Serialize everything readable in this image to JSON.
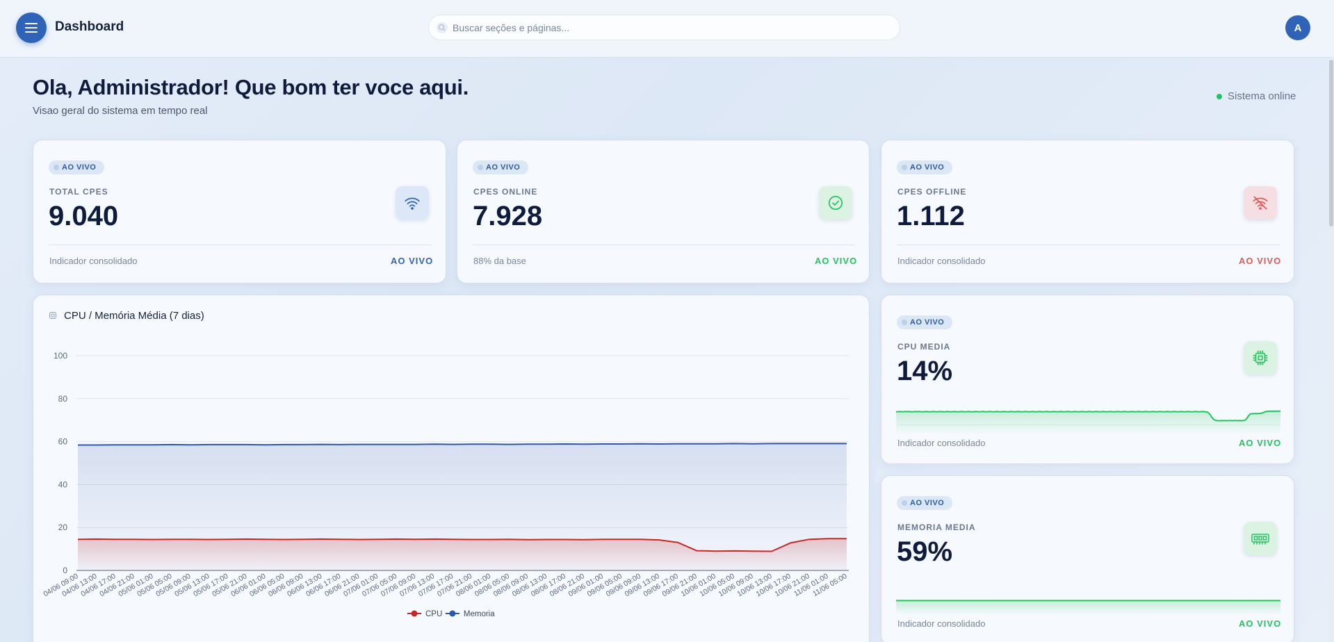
{
  "header": {
    "title": "Dashboard",
    "search_placeholder": "Buscar seções e páginas...",
    "avatar_initial": "A"
  },
  "welcome": {
    "greeting": "Ola, Administrador! Que bom ter voce aqui.",
    "subtitle": "Visao geral do sistema em tempo real",
    "status": "Sistema online"
  },
  "colors": {
    "primary": "#2f63b8",
    "success": "#22c55e",
    "danger": "#e05a5a",
    "cpu_line": "#c62828",
    "memory_line": "#2f56a8"
  },
  "kpis": [
    {
      "badge": "AO VIVO",
      "label": "TOTAL CPES",
      "value": "9.040",
      "footnote": "Indicador consolidado",
      "live": "AO VIVO",
      "icon": "wifi-icon"
    },
    {
      "badge": "AO VIVO",
      "label": "CPES ONLINE",
      "value": "7.928",
      "footnote": "88% da base",
      "live": "AO VIVO",
      "icon": "check-circle-icon"
    },
    {
      "badge": "AO VIVO",
      "label": "CPES OFFLINE",
      "value": "1.112",
      "footnote": "Indicador consolidado",
      "live": "AO VIVO",
      "icon": "wifi-off-icon"
    }
  ],
  "metrics": [
    {
      "badge": "AO VIVO",
      "label": "CPU MEDIA",
      "value": "14%",
      "footnote": "Indicador consolidado",
      "live": "AO VIVO",
      "icon": "cpu-chip-icon",
      "spark": [
        14.2,
        14.1,
        14.3,
        14.2,
        14.1,
        14.3,
        14.2,
        14.3,
        14.2,
        14.1,
        14.2,
        14.3,
        14.2,
        14.3,
        14.2,
        14.1,
        14.2,
        14.3,
        14.2,
        14.1,
        14.2,
        14.3,
        14.2,
        14.1,
        14.2,
        14.3,
        14.2,
        14.1,
        14.2,
        14.3,
        14.2,
        14.1,
        14.2,
        14.3,
        14.2,
        14.1,
        14.2,
        14.3,
        14.2,
        14.1,
        14.2,
        14.3,
        14.2,
        14.1,
        14.2,
        14.3,
        14.2,
        14.1,
        14.2,
        14.3,
        14.2,
        14.1,
        14.2,
        14.3,
        14.2,
        14.1,
        14.2,
        14.3,
        14.2,
        14.1,
        14.2,
        14.3,
        14.2,
        14.1,
        14.2,
        14.3,
        14.2,
        14.1,
        14.2,
        14.3,
        14.2,
        14.1,
        14.2,
        14.3,
        14.2,
        14.1,
        14.2,
        14.3,
        14.2,
        14.1,
        14.2,
        14.3,
        14.2,
        14.1,
        14.2,
        14.3,
        14.2,
        14.1,
        14.2,
        14.3,
        14.2,
        14.1,
        14.2,
        14.3,
        14.2,
        14.1,
        14.2,
        14.3,
        14.2,
        14.1,
        14.2,
        14.3,
        14.2,
        14.1,
        14.2,
        14.3,
        14.2,
        14.1,
        14.2,
        14.3,
        14.2,
        14.1,
        14.2,
        14.3,
        14.2,
        14.1,
        14.2,
        14.3,
        14.2,
        14.1,
        14.2,
        14.3,
        14.2,
        14.1,
        14.2,
        14.3,
        14.2,
        14.1,
        14.2,
        14.3,
        14.2,
        14.1,
        14.2,
        14.3,
        14.2,
        14.1,
        14.2,
        14.3,
        14.2,
        14.1,
        14.2,
        14.3,
        14.2,
        14.1,
        14.2,
        14.3,
        14.2,
        14.1,
        14.2,
        14.3,
        14.2,
        14.1,
        14.2,
        14.3,
        14.2,
        14.1,
        14.2,
        14.3,
        14.2,
        14.1,
        14.2,
        14.3,
        14.2,
        14.1,
        14.2,
        14.3,
        14.2,
        14.1,
        14.2,
        14.3,
        14.2,
        14.1,
        14.2,
        14.3,
        14.2,
        14.1,
        13.8,
        13.0,
        11.5,
        10.3,
        9.6,
        9.4,
        9.3,
        9.3,
        9.4,
        9.3,
        9.4,
        9.3,
        9.4,
        9.4,
        9.3,
        9.4,
        9.4,
        9.3,
        9.4,
        9.3,
        9.4,
        9.6,
        10.5,
        12.0,
        13.0,
        13.1,
        13.1,
        13.2,
        13.1,
        13.2,
        13.3,
        13.6,
        14.0,
        14.3,
        14.4,
        14.4,
        14.5,
        14.4,
        14.5,
        14.5,
        14.4,
        14.5
      ],
      "spark_min": 5,
      "spark_max": 20
    },
    {
      "badge": "AO VIVO",
      "label": "MEMORIA MEDIA",
      "value": "59%",
      "footnote": "Indicador consolidado",
      "live": "AO VIVO",
      "icon": "memory-icon",
      "spark": [
        57.2,
        57.2,
        57.2,
        57.2,
        57.2,
        57.2,
        57.2,
        57.2,
        57.2,
        57.2,
        57.2,
        57.2,
        57.2,
        57.2,
        57.2,
        57.2,
        57.2,
        57.2,
        57.2,
        57.2,
        57.2,
        57.2,
        57.2,
        57.2,
        57.2,
        57.2,
        57.2,
        57.2,
        57.2,
        57.2,
        57.2,
        57.2,
        57.2,
        57.2,
        57.2,
        57.2,
        57.2,
        57.2,
        57.2,
        57.2,
        57.2,
        57.2,
        57.2,
        57.2,
        57.2,
        57.2,
        57.2,
        57.2,
        57.2,
        57.2,
        57.2,
        57.2,
        57.2,
        57.2,
        57.2,
        57.2,
        57.2,
        57.2,
        57.2,
        57.2,
        57.2,
        57.2,
        57.2,
        57.2,
        57.2,
        57.2,
        57.2,
        57.2,
        57.2,
        57.2,
        57.2,
        57.2,
        57.2,
        57.2,
        57.2,
        57.2,
        57.2,
        57.2,
        57.2,
        57.2,
        57.2,
        57.2,
        57.2,
        57.2,
        57.2,
        57.2,
        57.2,
        57.2,
        57.2,
        57.2,
        57.2,
        57.2,
        57.2,
        57.2,
        57.2,
        57.2,
        57.2,
        57.2,
        57.2,
        57.2,
        57.2,
        57.2,
        57.2,
        57.2,
        57.2,
        57.2,
        57.2,
        57.2,
        57.2,
        57.2,
        57.2,
        57.2,
        57.2,
        57.2,
        57.2,
        57.2,
        57.2,
        57.2,
        57.2,
        57.2,
        57.2,
        57.2,
        57.2,
        57.2,
        57.2,
        57.2,
        57.2,
        57.2,
        57.2,
        57.2,
        57.2,
        57.2,
        57.2,
        57.2,
        57.2,
        57.2,
        57.2,
        57.2,
        57.2,
        57.2,
        57.2,
        57.2,
        57.2,
        57.2,
        57.2,
        57.2,
        57.2,
        57.2,
        57.2,
        57.2,
        57.2,
        57.2,
        57.2,
        57.2,
        57.2,
        57.2,
        57.2,
        57.2,
        57.2,
        57.2,
        57.2,
        57.2,
        57.2,
        57.2,
        57.2,
        57.2,
        57.2,
        57.2,
        57.2,
        57.2,
        57.2,
        57.2,
        57.2,
        57.2,
        57.2,
        57.2,
        57.2,
        57.2,
        57.2,
        57.2,
        57.2,
        57.2,
        57.2,
        57.2,
        57.2,
        57.2,
        57.2,
        57.2,
        57.2,
        57.2,
        57.2,
        57.2,
        57.2,
        57.2,
        57.2,
        57.2,
        57.2,
        57.2,
        57.2,
        57.2,
        57.2,
        57.2,
        57.2,
        57.2,
        57.2,
        57.2,
        57.2,
        57.2,
        57.2,
        57.2
      ],
      "spark_min": 55,
      "spark_max": 62
    }
  ],
  "chart_data": {
    "type": "area",
    "title": "CPU / Memória Média (7 dias)",
    "xlabel": "",
    "ylabel": "",
    "ylim": [
      0,
      100
    ],
    "yticks": [
      0,
      20,
      40,
      60,
      80,
      100
    ],
    "grid": true,
    "legend_placement": "bottom-center",
    "categories": [
      "04/06 09:00",
      "04/06 13:00",
      "04/06 17:00",
      "04/06 21:00",
      "05/06 01:00",
      "05/06 05:00",
      "05/06 09:00",
      "05/06 13:00",
      "05/06 17:00",
      "05/06 21:00",
      "06/06 01:00",
      "06/06 05:00",
      "06/06 09:00",
      "06/06 13:00",
      "06/06 17:00",
      "06/06 21:00",
      "07/06 01:00",
      "07/06 05:00",
      "07/06 09:00",
      "07/06 13:00",
      "07/06 17:00",
      "07/06 21:00",
      "08/06 01:00",
      "08/06 05:00",
      "08/06 09:00",
      "08/06 13:00",
      "08/06 17:00",
      "08/06 21:00",
      "09/06 01:00",
      "09/06 05:00",
      "09/06 09:00",
      "09/06 13:00",
      "09/06 17:00",
      "09/06 21:00",
      "10/06 01:00",
      "10/06 05:00",
      "10/06 09:00",
      "10/06 13:00",
      "10/06 17:00",
      "10/06 21:00",
      "11/06 01:00",
      "11/06 05:00"
    ],
    "series": [
      {
        "name": "CPU",
        "color": "#c62828",
        "values": [
          14.5,
          14.6,
          14.5,
          14.5,
          14.4,
          14.5,
          14.5,
          14.4,
          14.5,
          14.6,
          14.5,
          14.4,
          14.5,
          14.6,
          14.5,
          14.4,
          14.5,
          14.6,
          14.5,
          14.6,
          14.5,
          14.4,
          14.4,
          14.5,
          14.3,
          14.4,
          14.4,
          14.3,
          14.5,
          14.5,
          14.5,
          14.2,
          13.0,
          9.2,
          9.0,
          9.1,
          9.0,
          8.9,
          12.8,
          14.5,
          14.8,
          14.8
        ]
      },
      {
        "name": "Memoria",
        "color": "#2f56a8",
        "values": [
          58.4,
          58.4,
          58.5,
          58.5,
          58.5,
          58.6,
          58.5,
          58.6,
          58.6,
          58.6,
          58.5,
          58.6,
          58.6,
          58.7,
          58.6,
          58.7,
          58.7,
          58.7,
          58.7,
          58.8,
          58.7,
          58.8,
          58.8,
          58.7,
          58.8,
          58.8,
          58.9,
          58.8,
          58.9,
          58.9,
          59.0,
          58.9,
          59.0,
          59.0,
          59.0,
          59.1,
          59.0,
          59.1,
          59.1,
          59.1,
          59.1,
          59.1
        ]
      }
    ]
  }
}
